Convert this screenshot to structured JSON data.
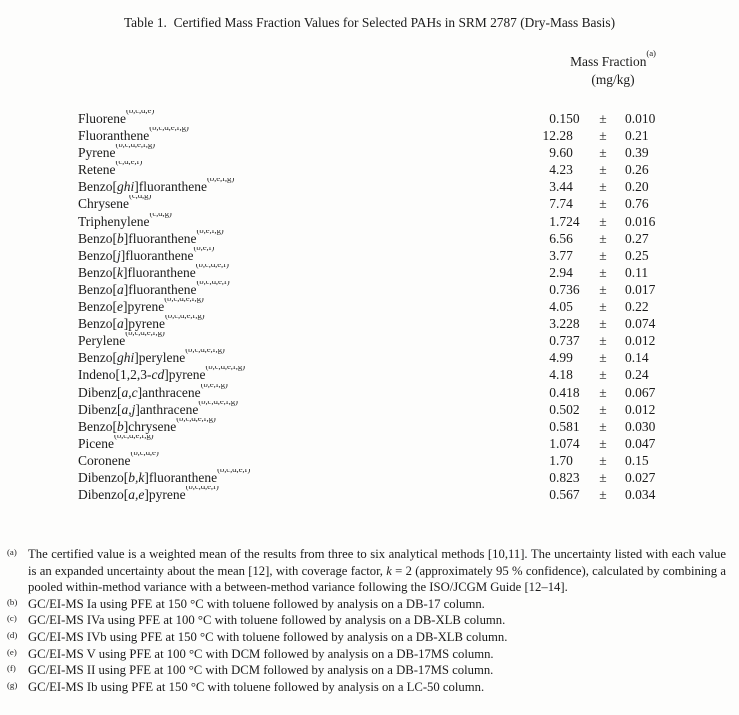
{
  "title": "Table 1.  Certified Mass Fraction Values for Selected PAHs in SRM 2787 (Dry-Mass Basis)",
  "header": {
    "label": "Mass Fraction",
    "label_sup": "(a)",
    "unit": "(mg/kg)"
  },
  "table": {
    "pm_sign": "±",
    "rows": [
      {
        "name": "Fluorene",
        "sup": "(b,c,d,e)",
        "value": "0.150",
        "uncertainty": "0.010"
      },
      {
        "name": "Fluoranthene",
        "sup": "(b,c,d,e,f,g)",
        "value": "12.28",
        "uncertainty": "0.21"
      },
      {
        "name": "Pyrene",
        "sup": "(b,c,d,e,f,g)",
        "value": "9.60",
        "uncertainty": "0.39"
      },
      {
        "name": "Retene",
        "sup": "(c,d,e,f)",
        "value": "4.23",
        "uncertainty": "0.26"
      },
      {
        "name": "Benzo[*ghi*]fluoranthene",
        "sup": "(b,e,f,g)",
        "value": "3.44",
        "uncertainty": "0.20"
      },
      {
        "name": "Chrysene",
        "sup": "(c,d,g)",
        "value": "7.74",
        "uncertainty": "0.76"
      },
      {
        "name": "Triphenylene",
        "sup": "(c,d,g)",
        "value": "1.724",
        "uncertainty": "0.016"
      },
      {
        "name": "Benzo[*b*]fluoranthene",
        "sup": "(b,e,f,g)",
        "value": "6.56",
        "uncertainty": "0.27"
      },
      {
        "name": "Benzo[*j*]fluoranthene",
        "sup": "(b,e,f)",
        "value": "3.77",
        "uncertainty": "0.25"
      },
      {
        "name": "Benzo[*k*]fluoranthene",
        "sup": "(b,c,d,e,f)",
        "value": "2.94",
        "uncertainty": "0.11"
      },
      {
        "name": "Benzo[*a*]fluoranthene",
        "sup": "(b,c,d,e,f)",
        "value": "0.736",
        "uncertainty": "0.017"
      },
      {
        "name": "Benzo[*e*]pyrene",
        "sup": "(b,c,d,e,f,g)",
        "value": "4.05",
        "uncertainty": "0.22"
      },
      {
        "name": "Benzo[*a*]pyrene",
        "sup": "(b,c,d,e,f,g)",
        "value": "3.228",
        "uncertainty": "0.074"
      },
      {
        "name": "Perylene",
        "sup": "(b,c,d,e,f,g)",
        "value": "0.737",
        "uncertainty": "0.012"
      },
      {
        "name": "Benzo[*ghi*]perylene",
        "sup": "(b,c,d,e,f,g)",
        "value": "4.99",
        "uncertainty": "0.14"
      },
      {
        "name": "Indeno[1,2,3-*cd*]pyrene",
        "sup": "(b,c,d,e,f,g)",
        "value": "4.18",
        "uncertainty": "0.24"
      },
      {
        "name": "Dibenz[*a,c*]anthracene",
        "sup": "(b,e,f,g)",
        "value": "0.418",
        "uncertainty": "0.067"
      },
      {
        "name": "Dibenz[*a,j*]anthracene",
        "sup": "(b,c,d,e,f,g)",
        "value": "0.502",
        "uncertainty": "0.012"
      },
      {
        "name": "Benzo[*b*]chrysene",
        "sup": "(b,c,d,e,f,g)",
        "value": "0.581",
        "uncertainty": "0.030"
      },
      {
        "name": "Picene",
        "sup": "(b,c,d,e,f,g)",
        "value": "1.074",
        "uncertainty": "0.047"
      },
      {
        "name": "Coronene",
        "sup": "(b,c,d,e)",
        "value": "1.70",
        "uncertainty": "0.15"
      },
      {
        "name": "Dibenzo[*b,k*]fluoranthene",
        "sup": "(b,c,d,e,f)",
        "value": "0.823",
        "uncertainty": "0.027"
      },
      {
        "name": "Dibenzo[*a,e*]pyrene",
        "sup": "(b,c,d,e,f)",
        "value": "0.567",
        "uncertainty": "0.034"
      }
    ]
  },
  "footnotes": [
    {
      "marker": "(a)",
      "justify": true,
      "text": "The certified value is a weighted mean of the results from three to six analytical methods [10,11].  The uncertainty listed with each value is an expanded uncertainty about the mean [12], with coverage factor, *k* = 2 (approximately 95 % confidence), calculated by combining a pooled within-method variance with a between-method variance following the ISO/JCGM Guide [12–14]."
    },
    {
      "marker": "(b)",
      "justify": false,
      "text": "GC/EI-MS Ia using PFE at 150 °C with toluene followed by analysis on a DB-17 column."
    },
    {
      "marker": "(c)",
      "justify": false,
      "text": "GC/EI-MS IVa using PFE at 100 °C with toluene followed by analysis on a DB-XLB column."
    },
    {
      "marker": "(d)",
      "justify": false,
      "text": "GC/EI-MS IVb using PFE at 150 °C with toluene followed by analysis on a DB-XLB column."
    },
    {
      "marker": "(e)",
      "justify": false,
      "text": "GC/EI-MS V using PFE at 100 °C with DCM followed by analysis on a DB-17MS column."
    },
    {
      "marker": "(f)",
      "justify": false,
      "text": "GC/EI-MS II using PFE at 100 °C with DCM followed by analysis on a DB-17MS column."
    },
    {
      "marker": "(g)",
      "justify": false,
      "text": "GC/EI-MS Ib using PFE at 150 °C with toluene followed by analysis on a LC-50 column."
    }
  ]
}
